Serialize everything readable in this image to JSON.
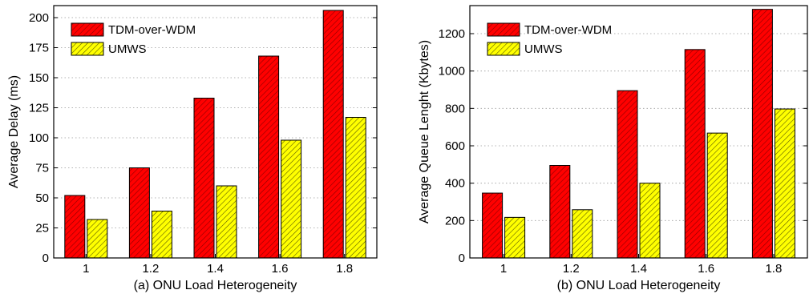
{
  "chart_data": [
    {
      "type": "bar",
      "title": "",
      "xlabel": "(a) ONU Load Heterogeneity",
      "ylabel": "Average Delay (ms)",
      "categories": [
        "1",
        "1.2",
        "1.4",
        "1.6",
        "1.8"
      ],
      "ylim": [
        0,
        210
      ],
      "yticks": [
        "0",
        "25",
        "50",
        "75",
        "100",
        "125",
        "150",
        "175",
        "200"
      ],
      "grid": "horizontal dotted",
      "legend_position": "top-left",
      "series": [
        {
          "name": "TDM-over-WDM",
          "values": [
            52,
            75,
            133,
            168,
            206
          ],
          "color": "#ff0000",
          "hatch": "#8b0000"
        },
        {
          "name": "UMWS",
          "values": [
            32,
            39,
            60,
            98,
            117
          ],
          "color": "#ffff00",
          "hatch": "#5a5a00"
        }
      ]
    },
    {
      "type": "bar",
      "title": "",
      "xlabel": "(b) ONU Load Heterogeneity",
      "ylabel": "Average Queue Lenght (Kbytes)",
      "categories": [
        "1",
        "1.2",
        "1.4",
        "1.6",
        "1.8"
      ],
      "ylim": [
        0,
        1350
      ],
      "yticks": [
        "0",
        "200",
        "400",
        "600",
        "800",
        "1000",
        "1200"
      ],
      "grid": "horizontal dotted",
      "legend_position": "top-left",
      "series": [
        {
          "name": "TDM-over-WDM",
          "values": [
            347,
            495,
            895,
            1115,
            1330
          ],
          "color": "#ff0000",
          "hatch": "#8b0000"
        },
        {
          "name": "UMWS",
          "values": [
            217,
            258,
            400,
            668,
            797
          ],
          "color": "#ffff00",
          "hatch": "#5a5a00"
        }
      ]
    }
  ]
}
